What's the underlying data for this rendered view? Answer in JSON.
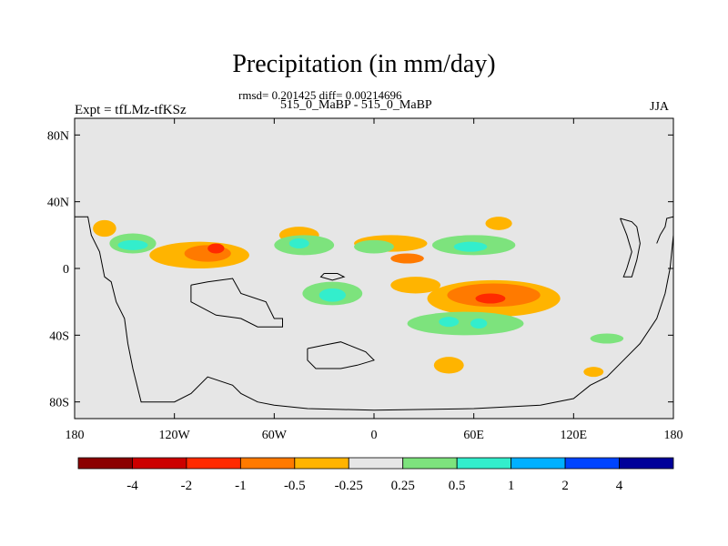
{
  "figure": {
    "title": "Precipitation (in mm/day)",
    "stats": "rmsd= 0.201425 diff= 0.00214696",
    "subtitle": "515_0_MaBP - 515_0_MaBP",
    "left_label": "Expt = tfLMz-tfKSz",
    "right_label": "JJA"
  },
  "chart_data": {
    "type": "heatmap",
    "title": "Precipitation (in mm/day)",
    "field": "precipitation difference",
    "units": "mm/day",
    "x_ticks": [
      {
        "value": -180,
        "label": "180"
      },
      {
        "value": -120,
        "label": "120W"
      },
      {
        "value": -60,
        "label": "60W"
      },
      {
        "value": 0,
        "label": "0"
      },
      {
        "value": 60,
        "label": "60E"
      },
      {
        "value": 120,
        "label": "120E"
      },
      {
        "value": 180,
        "label": "180"
      }
    ],
    "y_ticks": [
      {
        "value": 80,
        "label": "80N"
      },
      {
        "value": 40,
        "label": "40N"
      },
      {
        "value": 0,
        "label": "0"
      },
      {
        "value": -40,
        "label": "40S"
      },
      {
        "value": -80,
        "label": "80S"
      }
    ],
    "xlim": [
      -180,
      180
    ],
    "ylim": [
      -90,
      90
    ],
    "colorbar": {
      "labels": [
        "-4",
        "-2",
        "-1",
        "-0.5",
        "-0.25",
        "0.25",
        "0.5",
        "1",
        "2",
        "4"
      ],
      "colors": [
        "#8b0000",
        "#cc0000",
        "#ff2a00",
        "#ff7a00",
        "#ffb400",
        "#e6e6e6",
        "#7de37d",
        "#33eecc",
        "#00b0ff",
        "#0044ff",
        "#000099"
      ]
    },
    "regions": [
      {
        "name": "north-pacific-orange",
        "lon": -162,
        "lat": 24,
        "rx": 7,
        "ry": 5,
        "color": "#ffb400"
      },
      {
        "name": "east-pacific-green",
        "lon": -145,
        "lat": 15,
        "rx": 14,
        "ry": 6,
        "color": "#7de37d"
      },
      {
        "name": "east-pacific-cyan",
        "lon": -145,
        "lat": 14,
        "rx": 9,
        "ry": 3,
        "color": "#33eecc"
      },
      {
        "name": "central-america-yellow",
        "lon": -105,
        "lat": 8,
        "rx": 30,
        "ry": 8,
        "color": "#ffb400"
      },
      {
        "name": "central-america-orange",
        "lon": -100,
        "lat": 9,
        "rx": 14,
        "ry": 5,
        "color": "#ff7a00"
      },
      {
        "name": "central-america-red",
        "lon": -95,
        "lat": 12,
        "rx": 5,
        "ry": 3,
        "color": "#ff2a00"
      },
      {
        "name": "north-atlantic-yellow",
        "lon": -45,
        "lat": 20,
        "rx": 12,
        "ry": 5,
        "color": "#ffb400"
      },
      {
        "name": "tropical-atlantic-green",
        "lon": -42,
        "lat": 14,
        "rx": 18,
        "ry": 6,
        "color": "#7de37d"
      },
      {
        "name": "tropical-atlantic-cyan",
        "lon": -45,
        "lat": 15,
        "rx": 6,
        "ry": 3,
        "color": "#33eecc"
      },
      {
        "name": "sahel-yellow",
        "lon": 10,
        "lat": 15,
        "rx": 22,
        "ry": 5,
        "color": "#ffb400"
      },
      {
        "name": "africa-orange",
        "lon": 20,
        "lat": 6,
        "rx": 10,
        "ry": 3,
        "color": "#ff7a00"
      },
      {
        "name": "africa-green",
        "lon": 0,
        "lat": 13,
        "rx": 12,
        "ry": 4,
        "color": "#7de37d"
      },
      {
        "name": "arabian-sea-green",
        "lon": 60,
        "lat": 14,
        "rx": 25,
        "ry": 6,
        "color": "#7de37d"
      },
      {
        "name": "arabian-sea-cyan",
        "lon": 58,
        "lat": 13,
        "rx": 10,
        "ry": 3,
        "color": "#33eecc"
      },
      {
        "name": "india-yellow",
        "lon": 75,
        "lat": 27,
        "rx": 8,
        "ry": 4,
        "color": "#ffb400"
      },
      {
        "name": "south-atlantic-yellow",
        "lon": 25,
        "lat": -10,
        "rx": 15,
        "ry": 5,
        "color": "#ffb400"
      },
      {
        "name": "indian-ocean-yellow",
        "lon": 72,
        "lat": -18,
        "rx": 40,
        "ry": 11,
        "color": "#ffb400"
      },
      {
        "name": "indian-ocean-orange",
        "lon": 72,
        "lat": -16,
        "rx": 28,
        "ry": 7,
        "color": "#ff7a00"
      },
      {
        "name": "indian-ocean-red",
        "lon": 70,
        "lat": -18,
        "rx": 9,
        "ry": 3,
        "color": "#ff2a00"
      },
      {
        "name": "south-atlantic-green",
        "lon": -25,
        "lat": -15,
        "rx": 18,
        "ry": 7,
        "color": "#7de37d"
      },
      {
        "name": "south-atlantic-cyan",
        "lon": -25,
        "lat": -16,
        "rx": 8,
        "ry": 4,
        "color": "#33eecc"
      },
      {
        "name": "southern-indian-green",
        "lon": 55,
        "lat": -33,
        "rx": 35,
        "ry": 7,
        "color": "#7de37d"
      },
      {
        "name": "southern-indian-cyan",
        "lon": 45,
        "lat": -32,
        "rx": 6,
        "ry": 3,
        "color": "#33eecc"
      },
      {
        "name": "southern-indian-cyan-2",
        "lon": 63,
        "lat": -33,
        "rx": 5,
        "ry": 3,
        "color": "#33eecc"
      },
      {
        "name": "southern-ocean-yellow",
        "lon": 45,
        "lat": -58,
        "rx": 9,
        "ry": 5,
        "color": "#ffb400"
      },
      {
        "name": "australia-south-yellow",
        "lon": 132,
        "lat": -62,
        "rx": 6,
        "ry": 3,
        "color": "#ffb400"
      },
      {
        "name": "south-pacific-green",
        "lon": 140,
        "lat": -42,
        "rx": 10,
        "ry": 3,
        "color": "#7de37d"
      }
    ],
    "coastlines": [
      {
        "name": "continent-north-west",
        "points": [
          [
            -180,
            31
          ],
          [
            -172,
            31
          ],
          [
            -170,
            20
          ],
          [
            -165,
            10
          ],
          [
            -162,
            -5
          ],
          [
            -158,
            -8
          ],
          [
            -155,
            -20
          ],
          [
            -150,
            -30
          ],
          [
            -148,
            -45
          ],
          [
            -145,
            -60
          ],
          [
            -140,
            -80
          ],
          [
            -120,
            -80
          ],
          [
            -110,
            -75
          ],
          [
            -100,
            -65
          ],
          [
            -85,
            -70
          ],
          [
            -80,
            -75
          ],
          [
            -70,
            -80
          ],
          [
            -60,
            -82
          ],
          [
            -40,
            -84
          ],
          [
            0,
            -85
          ],
          [
            60,
            -84
          ],
          [
            100,
            -82
          ],
          [
            120,
            -78
          ],
          [
            130,
            -70
          ],
          [
            140,
            -65
          ],
          [
            150,
            -55
          ],
          [
            160,
            -45
          ],
          [
            170,
            -30
          ],
          [
            175,
            -15
          ],
          [
            178,
            0
          ],
          [
            180,
            20
          ],
          [
            180,
            31
          ],
          [
            176,
            30
          ],
          [
            175,
            25
          ],
          [
            172,
            20
          ],
          [
            170,
            15
          ]
        ]
      },
      {
        "name": "interior-ring-1",
        "points": [
          [
            -110,
            -10
          ],
          [
            -100,
            -8
          ],
          [
            -85,
            -6
          ],
          [
            -80,
            -15
          ],
          [
            -65,
            -20
          ],
          [
            -60,
            -30
          ],
          [
            -55,
            -30
          ],
          [
            -55,
            -35
          ],
          [
            -70,
            -35
          ],
          [
            -80,
            -30
          ],
          [
            -95,
            -28
          ],
          [
            -110,
            -20
          ],
          [
            -110,
            -10
          ]
        ]
      },
      {
        "name": "interior-ring-2",
        "points": [
          [
            -40,
            -48
          ],
          [
            -30,
            -46
          ],
          [
            -20,
            -44
          ],
          [
            -15,
            -46
          ],
          [
            -5,
            -50
          ],
          [
            0,
            -55
          ],
          [
            -10,
            -58
          ],
          [
            -20,
            -60
          ],
          [
            -35,
            -60
          ],
          [
            -40,
            -55
          ],
          [
            -40,
            -48
          ]
        ]
      },
      {
        "name": "continent-east-block",
        "points": [
          [
            148,
            30
          ],
          [
            150,
            25
          ],
          [
            152,
            20
          ],
          [
            155,
            10
          ],
          [
            152,
            0
          ],
          [
            150,
            -5
          ],
          [
            155,
            -5
          ],
          [
            158,
            5
          ],
          [
            160,
            15
          ],
          [
            158,
            25
          ],
          [
            155,
            28
          ],
          [
            148,
            30
          ]
        ]
      },
      {
        "name": "island-1",
        "points": [
          [
            -30,
            -3
          ],
          [
            -22,
            -3
          ],
          [
            -18,
            -5
          ],
          [
            -25,
            -7
          ],
          [
            -32,
            -5
          ],
          [
            -30,
            -3
          ]
        ]
      }
    ]
  }
}
